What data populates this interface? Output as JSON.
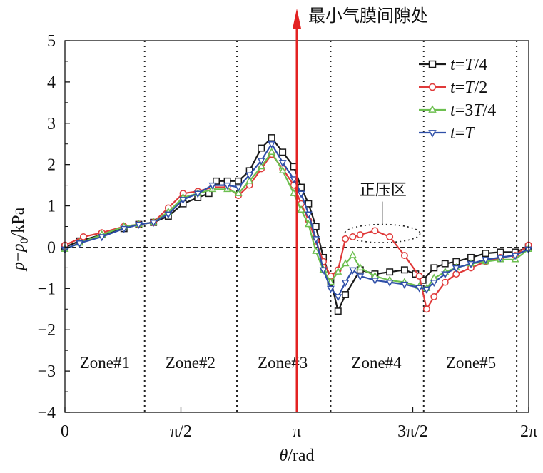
{
  "chart_data": {
    "type": "line",
    "annotation_top": "最小气膜间隙处",
    "positive_pressure_label": "正压区",
    "xlabel": "θ/rad",
    "ylabel": "p−p0/kPa",
    "ylabel_parts": {
      "main": "p−p",
      "sub": "0",
      "unit": "/kPa"
    },
    "xlim": [
      0,
      6.2832
    ],
    "ylim": [
      -4,
      5
    ],
    "x_ticks": [
      {
        "value": 0,
        "label": "0"
      },
      {
        "value": 1.5708,
        "label": "π/2"
      },
      {
        "value": 3.1416,
        "label": "π"
      },
      {
        "value": 4.7124,
        "label": "3π/2"
      },
      {
        "value": 6.2832,
        "label": "2π"
      }
    ],
    "y_ticks": [
      {
        "value": 5,
        "label": "5"
      },
      {
        "value": 4,
        "label": "4"
      },
      {
        "value": 3,
        "label": "3"
      },
      {
        "value": 2,
        "label": "2"
      },
      {
        "value": 1,
        "label": "1"
      },
      {
        "value": 0,
        "label": "0"
      },
      {
        "value": -1,
        "label": "−1"
      },
      {
        "value": -2,
        "label": "−2"
      },
      {
        "value": -3,
        "label": "−3"
      },
      {
        "value": -4,
        "label": "−4"
      }
    ],
    "zone_boundaries": [
      1.08,
      2.33,
      3.6,
      4.86,
      6.12
    ],
    "zones": [
      {
        "label": "Zone#1",
        "x": 0.54
      },
      {
        "label": "Zone#2",
        "x": 1.7
      },
      {
        "label": "Zone#3",
        "x": 2.95
      },
      {
        "label": "Zone#4",
        "x": 4.22
      },
      {
        "label": "Zone#5",
        "x": 5.5
      }
    ],
    "min_film_gap_x": 3.1416,
    "zero_line": 0,
    "positive_pressure_region": {
      "x_center": 4.3,
      "x_radius": 0.51,
      "y_center": 0.33,
      "y_radius": 0.22
    },
    "legend_position": "top-right",
    "colors": {
      "t_T4": "#1a1a1a",
      "t_T2": "#e03a3a",
      "t_3T4": "#6cbf4f",
      "t_T": "#2f4fa8",
      "arrow": "#e32222"
    },
    "series": [
      {
        "name_parts": [
          "t",
          "=",
          "T",
          "/4"
        ],
        "marker": "square",
        "color_key": "t_T4",
        "x": [
          0,
          0.2,
          0.5,
          0.8,
          1.0,
          1.2,
          1.4,
          1.6,
          1.8,
          1.95,
          2.05,
          2.2,
          2.35,
          2.5,
          2.66,
          2.8,
          2.95,
          3.1,
          3.2,
          3.3,
          3.4,
          3.5,
          3.6,
          3.7,
          3.8,
          4.0,
          4.2,
          4.4,
          4.6,
          4.75,
          4.85,
          5.0,
          5.15,
          5.3,
          5.5,
          5.7,
          5.9,
          6.1,
          6.28
        ],
        "y": [
          0.0,
          0.15,
          0.3,
          0.45,
          0.55,
          0.6,
          0.75,
          1.05,
          1.2,
          1.3,
          1.6,
          1.6,
          1.6,
          1.85,
          2.4,
          2.65,
          2.3,
          1.95,
          1.45,
          1.05,
          0.5,
          -0.25,
          -0.8,
          -1.55,
          -1.15,
          -0.55,
          -0.65,
          -0.6,
          -0.55,
          -0.65,
          -0.8,
          -0.5,
          -0.4,
          -0.35,
          -0.25,
          -0.15,
          -0.12,
          -0.12,
          0.0
        ]
      },
      {
        "name_parts": [
          "t",
          "=",
          "T",
          "/2"
        ],
        "marker": "circle",
        "color_key": "t_T2",
        "x": [
          0,
          0.25,
          0.5,
          0.8,
          1.0,
          1.2,
          1.4,
          1.6,
          1.8,
          2.0,
          2.2,
          2.35,
          2.5,
          2.66,
          2.8,
          2.95,
          3.1,
          3.2,
          3.3,
          3.4,
          3.5,
          3.6,
          3.7,
          3.8,
          3.9,
          4.0,
          4.2,
          4.4,
          4.6,
          4.8,
          4.9,
          5.0,
          5.15,
          5.3,
          5.5,
          5.7,
          5.9,
          6.1,
          6.28
        ],
        "y": [
          0.05,
          0.25,
          0.35,
          0.5,
          0.55,
          0.6,
          0.95,
          1.3,
          1.35,
          1.45,
          1.45,
          1.25,
          1.5,
          1.9,
          2.25,
          1.9,
          1.5,
          1.05,
          0.65,
          0.15,
          -0.35,
          -0.7,
          -0.55,
          0.2,
          0.25,
          0.3,
          0.4,
          0.25,
          -0.2,
          -0.7,
          -1.5,
          -1.2,
          -0.85,
          -0.65,
          -0.5,
          -0.35,
          -0.25,
          -0.2,
          0.05
        ]
      },
      {
        "name_parts": [
          "t",
          "=",
          "3",
          "T",
          "/4"
        ],
        "marker": "triangle-up",
        "color_key": "t_3T4",
        "x": [
          0,
          0.2,
          0.5,
          0.8,
          1.0,
          1.2,
          1.4,
          1.6,
          1.8,
          2.0,
          2.2,
          2.35,
          2.5,
          2.66,
          2.8,
          2.95,
          3.1,
          3.2,
          3.3,
          3.4,
          3.5,
          3.6,
          3.7,
          3.8,
          3.9,
          4.0,
          4.2,
          4.4,
          4.6,
          4.8,
          4.9,
          5.0,
          5.15,
          5.3,
          5.5,
          5.7,
          5.9,
          6.1,
          6.28
        ],
        "y": [
          -0.05,
          0.1,
          0.3,
          0.5,
          0.55,
          0.6,
          0.85,
          1.2,
          1.3,
          1.4,
          1.4,
          1.3,
          1.6,
          1.95,
          2.3,
          1.85,
          1.3,
          0.9,
          0.55,
          -0.1,
          -0.55,
          -0.85,
          -0.6,
          -0.4,
          -0.2,
          -0.5,
          -0.7,
          -0.8,
          -0.85,
          -0.95,
          -1.0,
          -0.75,
          -0.6,
          -0.5,
          -0.4,
          -0.35,
          -0.3,
          -0.3,
          -0.05
        ]
      },
      {
        "name_parts": [
          "t",
          "=",
          "T"
        ],
        "marker": "triangle-down",
        "color_key": "t_T",
        "x": [
          0,
          0.2,
          0.5,
          0.8,
          1.0,
          1.2,
          1.4,
          1.6,
          1.8,
          2.0,
          2.2,
          2.35,
          2.5,
          2.66,
          2.8,
          2.95,
          3.1,
          3.2,
          3.3,
          3.4,
          3.5,
          3.6,
          3.7,
          3.8,
          3.9,
          4.0,
          4.2,
          4.4,
          4.6,
          4.8,
          4.9,
          5.0,
          5.15,
          5.3,
          5.5,
          5.7,
          5.9,
          6.1,
          6.28
        ],
        "y": [
          -0.05,
          0.1,
          0.25,
          0.45,
          0.55,
          0.6,
          0.8,
          1.15,
          1.3,
          1.5,
          1.5,
          1.45,
          1.75,
          2.1,
          2.5,
          2.05,
          1.65,
          1.3,
          0.8,
          0.2,
          -0.55,
          -1.0,
          -1.2,
          -0.85,
          -0.55,
          -0.7,
          -0.8,
          -0.85,
          -0.9,
          -0.98,
          -1.02,
          -0.85,
          -0.65,
          -0.5,
          -0.4,
          -0.3,
          -0.25,
          -0.2,
          -0.05
        ]
      }
    ]
  }
}
